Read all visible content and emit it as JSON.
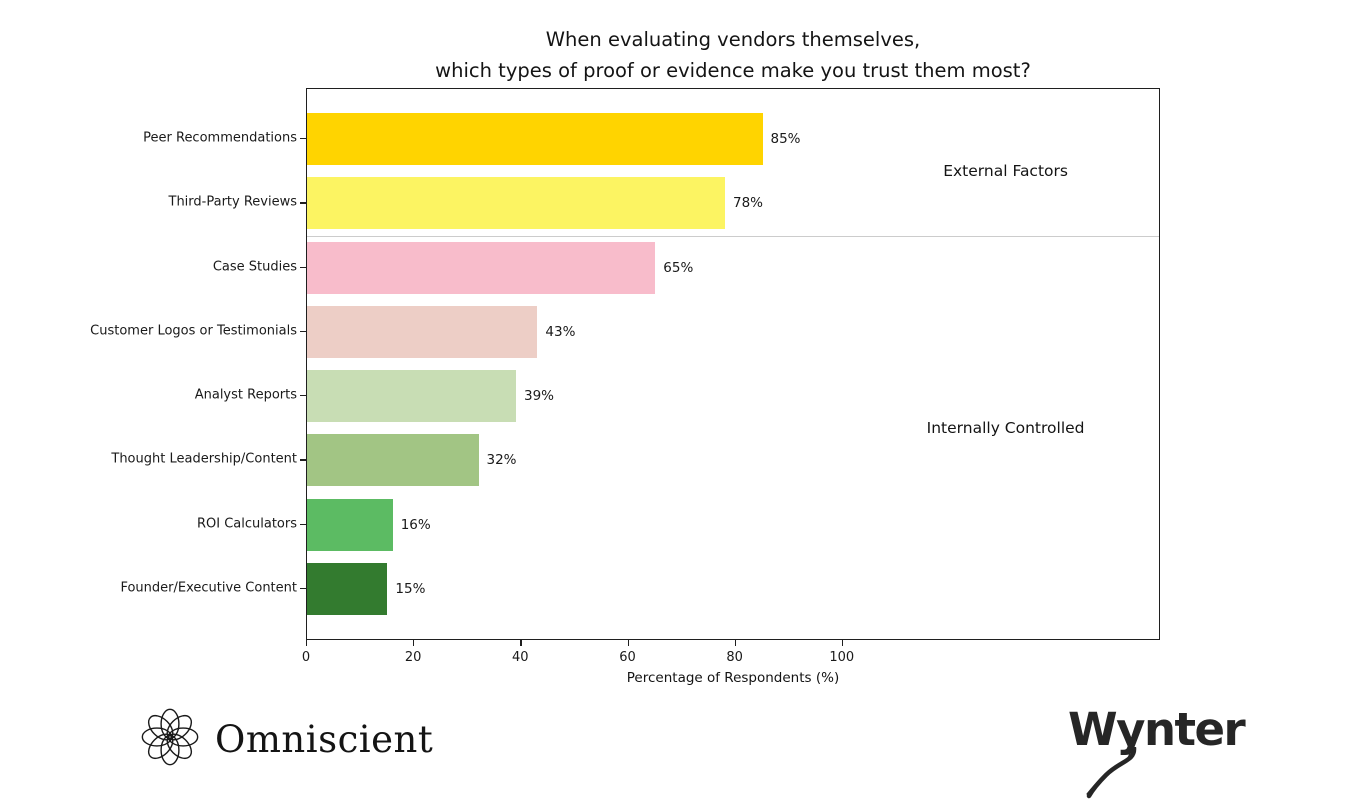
{
  "chart_data": {
    "type": "bar",
    "orientation": "horizontal",
    "title": "When evaluating vendors themselves,\nwhich types of proof or evidence make you trust them most?",
    "categories": [
      "Peer Recommendations",
      "Third-Party Reviews",
      "Case Studies",
      "Customer Logos or Testimonials",
      "Analyst Reports",
      "Thought Leadership/Content",
      "ROI Calculators",
      "Founder/Executive Content"
    ],
    "values": [
      85,
      78,
      65,
      43,
      39,
      32,
      16,
      15
    ],
    "value_labels": [
      "85%",
      "78%",
      "65%",
      "43%",
      "39%",
      "32%",
      "16%",
      "15%"
    ],
    "bar_colors": [
      "#FFD400",
      "#FCF462",
      "#F8BCCB",
      "#EDCEC6",
      "#C8DDB4",
      "#A2C584",
      "#5CBB63",
      "#337B2F"
    ],
    "xlabel": "Percentage of Respondents (%)",
    "xticks": [
      0,
      20,
      40,
      60,
      80,
      100
    ],
    "xlim": [
      0,
      159
    ],
    "grid": false,
    "legend": "none",
    "groups": [
      {
        "label": "External Factors",
        "rows": [
          0,
          1
        ]
      },
      {
        "label": "Internally Controlled",
        "rows": [
          2,
          7
        ]
      }
    ],
    "divider_after_row": 1
  },
  "footer": {
    "left_logo_text": "Omniscient",
    "right_logo_text": "Wynter"
  },
  "colors": {
    "background": "#ffffff",
    "axis": "#1f1f1f",
    "divider": "#cccccc",
    "text": "#1a1a1a",
    "logo": "#1a1a1a"
  }
}
